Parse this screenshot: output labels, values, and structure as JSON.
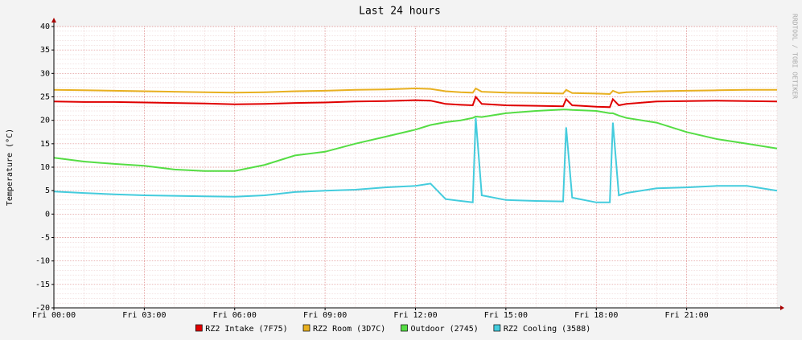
{
  "chart_data": {
    "type": "line",
    "title": "Last 24 hours",
    "y_label": "Temperature (°C)",
    "watermark": "RRDTOOL / TOBI OETIKER",
    "x": [
      0,
      1,
      2,
      3,
      4,
      5,
      6,
      7,
      8,
      9,
      10,
      11,
      12,
      12.5,
      13,
      13.5,
      13.9,
      14.0,
      14.2,
      15,
      16,
      16.9,
      17.0,
      17.2,
      18,
      18.45,
      18.55,
      18.75,
      19,
      20,
      21,
      22,
      23,
      24
    ],
    "xlim": [
      0,
      24
    ],
    "xticks": [
      {
        "value": 0,
        "label": "Fri 00:00"
      },
      {
        "value": 3,
        "label": "Fri 03:00"
      },
      {
        "value": 6,
        "label": "Fri 06:00"
      },
      {
        "value": 9,
        "label": "Fri 09:00"
      },
      {
        "value": 12,
        "label": "Fri 12:00"
      },
      {
        "value": 15,
        "label": "Fri 15:00"
      },
      {
        "value": 18,
        "label": "Fri 18:00"
      },
      {
        "value": 21,
        "label": "Fri 21:00"
      }
    ],
    "ylim": [
      -20,
      40
    ],
    "yticks": [
      -20,
      -15,
      -10,
      -5,
      0,
      5,
      10,
      15,
      20,
      25,
      30,
      35,
      40
    ],
    "grid": true,
    "legend": "bottom",
    "series": [
      {
        "name": "RZ2 Intake (7F75)",
        "color": "#e00000",
        "values": [
          24,
          23.9,
          23.9,
          23.8,
          23.7,
          23.6,
          23.4,
          23.5,
          23.7,
          23.8,
          24,
          24.1,
          24.3,
          24.2,
          23.5,
          23.3,
          23.2,
          25,
          23.5,
          23.2,
          23.1,
          23,
          24.5,
          23.2,
          22.9,
          22.8,
          24.5,
          23.2,
          23.5,
          24,
          24.1,
          24.2,
          24.1,
          24
        ]
      },
      {
        "name": "RZ2 Room (3D7C)",
        "color": "#e8b020",
        "values": [
          26.5,
          26.4,
          26.3,
          26.2,
          26.1,
          26,
          25.9,
          26,
          26.2,
          26.3,
          26.5,
          26.6,
          26.8,
          26.7,
          26.2,
          26,
          25.9,
          26.8,
          26.1,
          25.9,
          25.8,
          25.7,
          26.5,
          25.8,
          25.7,
          25.6,
          26.3,
          25.8,
          26,
          26.2,
          26.3,
          26.4,
          26.5,
          26.5
        ]
      },
      {
        "name": "Outdoor (2745)",
        "color": "#55dd44",
        "values": [
          12,
          11.2,
          10.7,
          10.3,
          9.5,
          9.2,
          9.2,
          10.5,
          12.5,
          13.3,
          15,
          16.5,
          18,
          19,
          19.6,
          20,
          20.5,
          20.8,
          20.7,
          21.5,
          22,
          22.3,
          22.3,
          22.2,
          22,
          21.5,
          21.5,
          21,
          20.5,
          19.5,
          17.5,
          16,
          15,
          14
        ]
      },
      {
        "name": "RZ2 Cooling (3588)",
        "color": "#44ccdd",
        "values": [
          4.8,
          4.5,
          4.2,
          4,
          3.9,
          3.8,
          3.7,
          4,
          4.7,
          5,
          5.2,
          5.7,
          6,
          6.5,
          3.2,
          2.8,
          2.5,
          20.5,
          4,
          3,
          2.8,
          2.7,
          18.5,
          3.5,
          2.5,
          2.5,
          19.5,
          4,
          4.5,
          5.5,
          5.7,
          6,
          6,
          5
        ]
      }
    ]
  }
}
